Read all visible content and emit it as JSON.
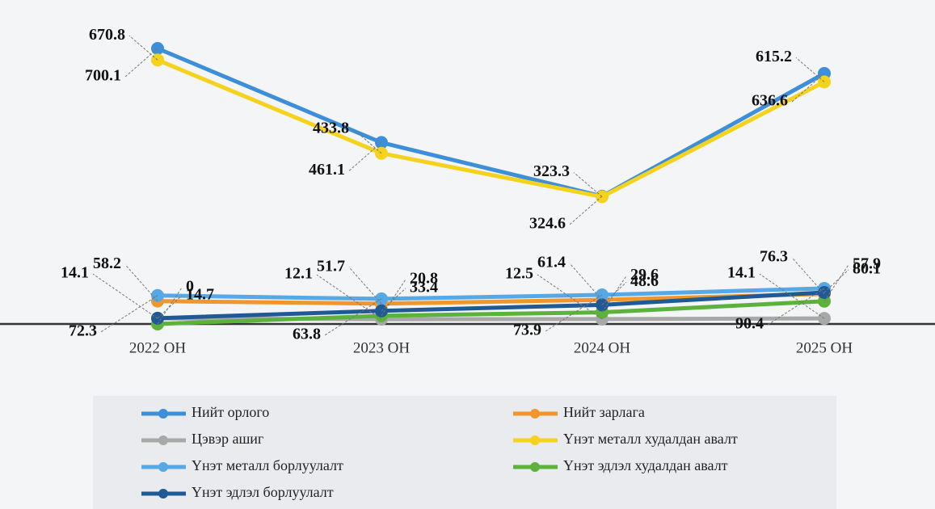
{
  "chart_data": {
    "type": "line",
    "categories": [
      "2022 ОН",
      "2023 ОН",
      "2024 ОН",
      "2025 ОН"
    ],
    "series": [
      {
        "name": "Нийт орлого",
        "color": "#3d8fd9",
        "values": [
          700.1,
          461.1,
          324.6,
          636.6
        ]
      },
      {
        "name": "Нийт зарлага",
        "color": "#f0962a",
        "values": [
          58.2,
          51.7,
          61.4,
          76.3
        ]
      },
      {
        "name": "Цэвэр ашиг",
        "color": "#a8a8a8",
        "values": [
          14.1,
          12.1,
          12.5,
          14.1
        ]
      },
      {
        "name": "Үнэт металл худалдан авалт",
        "color": "#f5d21c",
        "values": [
          670.8,
          433.8,
          323.3,
          615.2
        ]
      },
      {
        "name": "Үнэт металл борлуулалт",
        "color": "#56a9e6",
        "values": [
          72.3,
          63.8,
          73.9,
          90.4
        ]
      },
      {
        "name": "Үнэт эдлэл худалдан авалт",
        "color": "#5cb33c",
        "values": [
          0,
          20.8,
          29.6,
          57.9
        ]
      },
      {
        "name": "Үнэт эдлэл борлуулалт",
        "color": "#1f5a96",
        "values": [
          14.7,
          33.4,
          48.6,
          80.1
        ]
      }
    ]
  }
}
